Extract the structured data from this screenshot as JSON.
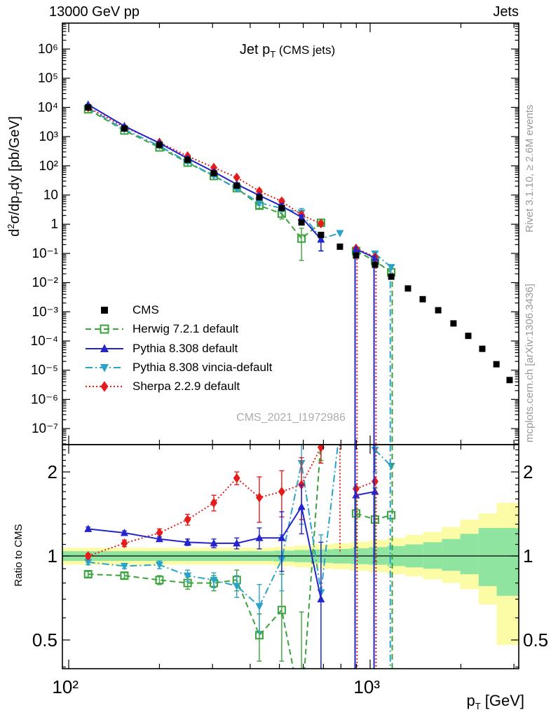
{
  "header": {
    "beam": "13000 GeV pp",
    "topic": "Jets"
  },
  "title": {
    "main": "Jet p",
    "sub": "T",
    "suffix": " (CMS jets)"
  },
  "axis_titles": {
    "y_d": "d",
    "y_sup": "2",
    "y_mid": "σ/dp",
    "y_sub": "T",
    "y_end": "dy [pb/GeV]",
    "x_main": "p",
    "x_sub": "T",
    "x_end": " [GeV]",
    "ratio": "Ratio to CMS"
  },
  "margin_texts": {
    "rivet": "Rivet 3.1.10, ≥ 2.6M events",
    "mcplots": "mcplots.cern.ch [arXiv:1306.3436]"
  },
  "watermark": "CMS_2021_I1972986",
  "chart_data": {
    "type": "line",
    "title": "Jet pT (CMS jets)",
    "xlabel": "pT [GeV]",
    "ylabel": "d2sigma/dpTdy [pb/GeV]",
    "ratio_ylabel": "Ratio to CMS",
    "xlim": [
      95.3,
      3113
    ],
    "ylim_main": [
      3e-08,
      7800000.0
    ],
    "ylim_ratio": [
      0.394,
      2.5
    ],
    "x_log": true,
    "y_log": true,
    "ratio_log": true,
    "main_y_ticks": [
      {
        "v": 1000000.0,
        "l": "10⁶"
      },
      {
        "v": 100000.0,
        "l": "10⁵"
      },
      {
        "v": 10000.0,
        "l": "10⁴"
      },
      {
        "v": 1000.0,
        "l": "10³"
      },
      {
        "v": 100.0,
        "l": "10²"
      },
      {
        "v": 10,
        "l": "10"
      },
      {
        "v": 1,
        "l": "1"
      },
      {
        "v": 0.1,
        "l": "10⁻¹"
      },
      {
        "v": 0.01,
        "l": "10⁻²"
      },
      {
        "v": 0.001,
        "l": "10⁻³"
      },
      {
        "v": 0.0001,
        "l": "10⁻⁴"
      },
      {
        "v": 1e-05,
        "l": "10⁻⁵"
      },
      {
        "v": 1e-06,
        "l": "10⁻⁶"
      },
      {
        "v": 1e-07,
        "l": "10⁻⁷"
      }
    ],
    "x_ticks": [
      {
        "v": 100,
        "l": "10²"
      },
      {
        "v": 1000,
        "l": "10³"
      }
    ],
    "ratio_ticks": [
      {
        "v": 0.5,
        "l": "0.5"
      },
      {
        "v": 1,
        "l": "1"
      },
      {
        "v": 2,
        "l": "2"
      }
    ],
    "colors": {
      "cms": "#000000",
      "herwig": "#3aa33c",
      "pythia": "#2424cc",
      "vincia": "#2aa3c8",
      "sherpa": "#e51c1c",
      "band_yellow": "#fcfca6",
      "band_green": "#8fe5a0"
    },
    "series_meta": [
      {
        "id": "cms",
        "label": "CMS",
        "marker": "square-filled",
        "line": "none"
      },
      {
        "id": "herwig",
        "label": "Herwig 7.2.1 default",
        "marker": "square-open",
        "line": "dash",
        "dash": "8 5"
      },
      {
        "id": "pythia",
        "label": "Pythia 8.308 default",
        "marker": "triangle-up",
        "line": "solid",
        "dash": ""
      },
      {
        "id": "vincia",
        "label": "Pythia 8.308 vincia-default",
        "marker": "triangle-down",
        "line": "dashdot",
        "dash": "10 4 2 4"
      },
      {
        "id": "sherpa",
        "label": "Sherpa 2.2.9 default",
        "marker": "diamond",
        "line": "dot",
        "dash": "2 3"
      }
    ],
    "pt_bins": [
      116,
      153,
      200,
      248,
      303,
      361,
      429,
      509,
      592,
      687,
      794,
      898,
      1038,
      1175
    ],
    "cms_values": [
      10000,
      1900,
      520,
      160,
      56,
      21,
      8.3,
      3.6,
      1.15,
      0.43,
      0.17,
      0.085,
      0.041,
      0.016
    ],
    "cms_tail_pt": [
      1335,
      1494,
      1682,
      1890,
      2116,
      2355,
      2624,
      2902
    ],
    "cms_tail_values": [
      0.0063,
      0.0027,
      0.00113,
      0.0004,
      0.00015,
      5.4e-05,
      1.6e-05,
      4.6e-06
    ],
    "ratio_series": {
      "herwig": {
        "r": [
          0.86,
          0.85,
          0.82,
          0.8,
          0.8,
          0.82,
          0.52,
          0.64,
          0.28,
          2.6,
          null,
          1.42,
          1.35,
          1.4
        ],
        "err": [
          0.02,
          0.02,
          0.03,
          0.04,
          0.05,
          0.07,
          0.1,
          0.22,
          0.35,
          0.4,
          null,
          0.35,
          0.4,
          null
        ]
      },
      "pythia": {
        "r": [
          1.25,
          1.21,
          1.15,
          1.12,
          1.11,
          1.11,
          1.16,
          1.16,
          1.5,
          0.7,
          null,
          1.65,
          1.7,
          null
        ],
        "err": [
          0.02,
          0.02,
          0.02,
          0.03,
          0.04,
          0.05,
          0.1,
          0.28,
          0.3,
          0.42,
          null,
          null,
          null,
          null
        ]
      },
      "vincia": {
        "r": [
          0.95,
          0.92,
          0.93,
          0.85,
          0.82,
          0.78,
          0.66,
          0.97,
          2.15,
          0.74,
          2.9,
          null,
          2.4,
          2.1
        ],
        "err": [
          0.02,
          0.02,
          0.03,
          0.04,
          0.05,
          0.07,
          0.13,
          0.22,
          0.85,
          0.45,
          null,
          null,
          0.4,
          null
        ]
      },
      "sherpa": {
        "r": [
          1.0,
          1.11,
          1.21,
          1.35,
          1.55,
          1.9,
          1.62,
          1.7,
          1.8,
          2.45,
          null,
          1.74,
          1.85,
          null
        ],
        "err": [
          0.02,
          0.03,
          0.04,
          0.06,
          0.1,
          0.1,
          0.3,
          0.32,
          0.45,
          0.3,
          null,
          null,
          null,
          null
        ]
      }
    },
    "big_error_verticals": [
      {
        "pt": 898,
        "series": [
          "pythia",
          "sherpa"
        ]
      },
      {
        "pt": 1038,
        "series": [
          "pythia",
          "sherpa"
        ]
      },
      {
        "pt": 1175,
        "series": [
          "vincia",
          "herwig"
        ]
      }
    ],
    "ratio_segments": [
      {
        "series": "sherpa",
        "pt": 794,
        "from": 2.5,
        "to": 1.02
      }
    ],
    "band_steps": [
      {
        "x0": 95.3,
        "x1": 480,
        "yl": 0.93,
        "yh": 1.07,
        "gl": 0.96,
        "gh": 1.04
      },
      {
        "x0": 480,
        "x1": 560,
        "yl": 0.92,
        "yh": 1.08,
        "gl": 0.955,
        "gh": 1.045
      },
      {
        "x0": 560,
        "x1": 650,
        "yl": 0.91,
        "yh": 1.09,
        "gl": 0.95,
        "gh": 1.05
      },
      {
        "x0": 650,
        "x1": 750,
        "yl": 0.9,
        "yh": 1.1,
        "gl": 0.945,
        "gh": 1.055
      },
      {
        "x0": 750,
        "x1": 860,
        "yl": 0.895,
        "yh": 1.11,
        "gl": 0.94,
        "gh": 1.06
      },
      {
        "x0": 860,
        "x1": 990,
        "yl": 0.885,
        "yh": 1.125,
        "gl": 0.935,
        "gh": 1.065
      },
      {
        "x0": 990,
        "x1": 1140,
        "yl": 0.875,
        "yh": 1.14,
        "gl": 0.93,
        "gh": 1.075
      },
      {
        "x0": 1140,
        "x1": 1310,
        "yl": 0.86,
        "yh": 1.16,
        "gl": 0.92,
        "gh": 1.085
      },
      {
        "x0": 1310,
        "x1": 1500,
        "yl": 0.845,
        "yh": 1.19,
        "gl": 0.91,
        "gh": 1.1
      },
      {
        "x0": 1500,
        "x1": 1730,
        "yl": 0.825,
        "yh": 1.22,
        "gl": 0.9,
        "gh": 1.12
      },
      {
        "x0": 1730,
        "x1": 1990,
        "yl": 0.8,
        "yh": 1.27,
        "gl": 0.885,
        "gh": 1.15
      },
      {
        "x0": 1990,
        "x1": 2290,
        "yl": 0.76,
        "yh": 1.35,
        "gl": 0.86,
        "gh": 1.2
      },
      {
        "x0": 2290,
        "x1": 2630,
        "yl": 0.67,
        "yh": 1.42,
        "gl": 0.78,
        "gh": 1.26
      },
      {
        "x0": 2630,
        "x1": 3113,
        "yl": 0.48,
        "yh": 1.55,
        "gl": 0.72,
        "gh": 1.26
      }
    ]
  },
  "legend": {
    "items": [
      {
        "label": "CMS"
      },
      {
        "label": "Herwig 7.2.1 default"
      },
      {
        "label": "Pythia 8.308 default"
      },
      {
        "label": "Pythia 8.308 vincia-default"
      },
      {
        "label": "Sherpa 2.2.9 default"
      }
    ]
  }
}
